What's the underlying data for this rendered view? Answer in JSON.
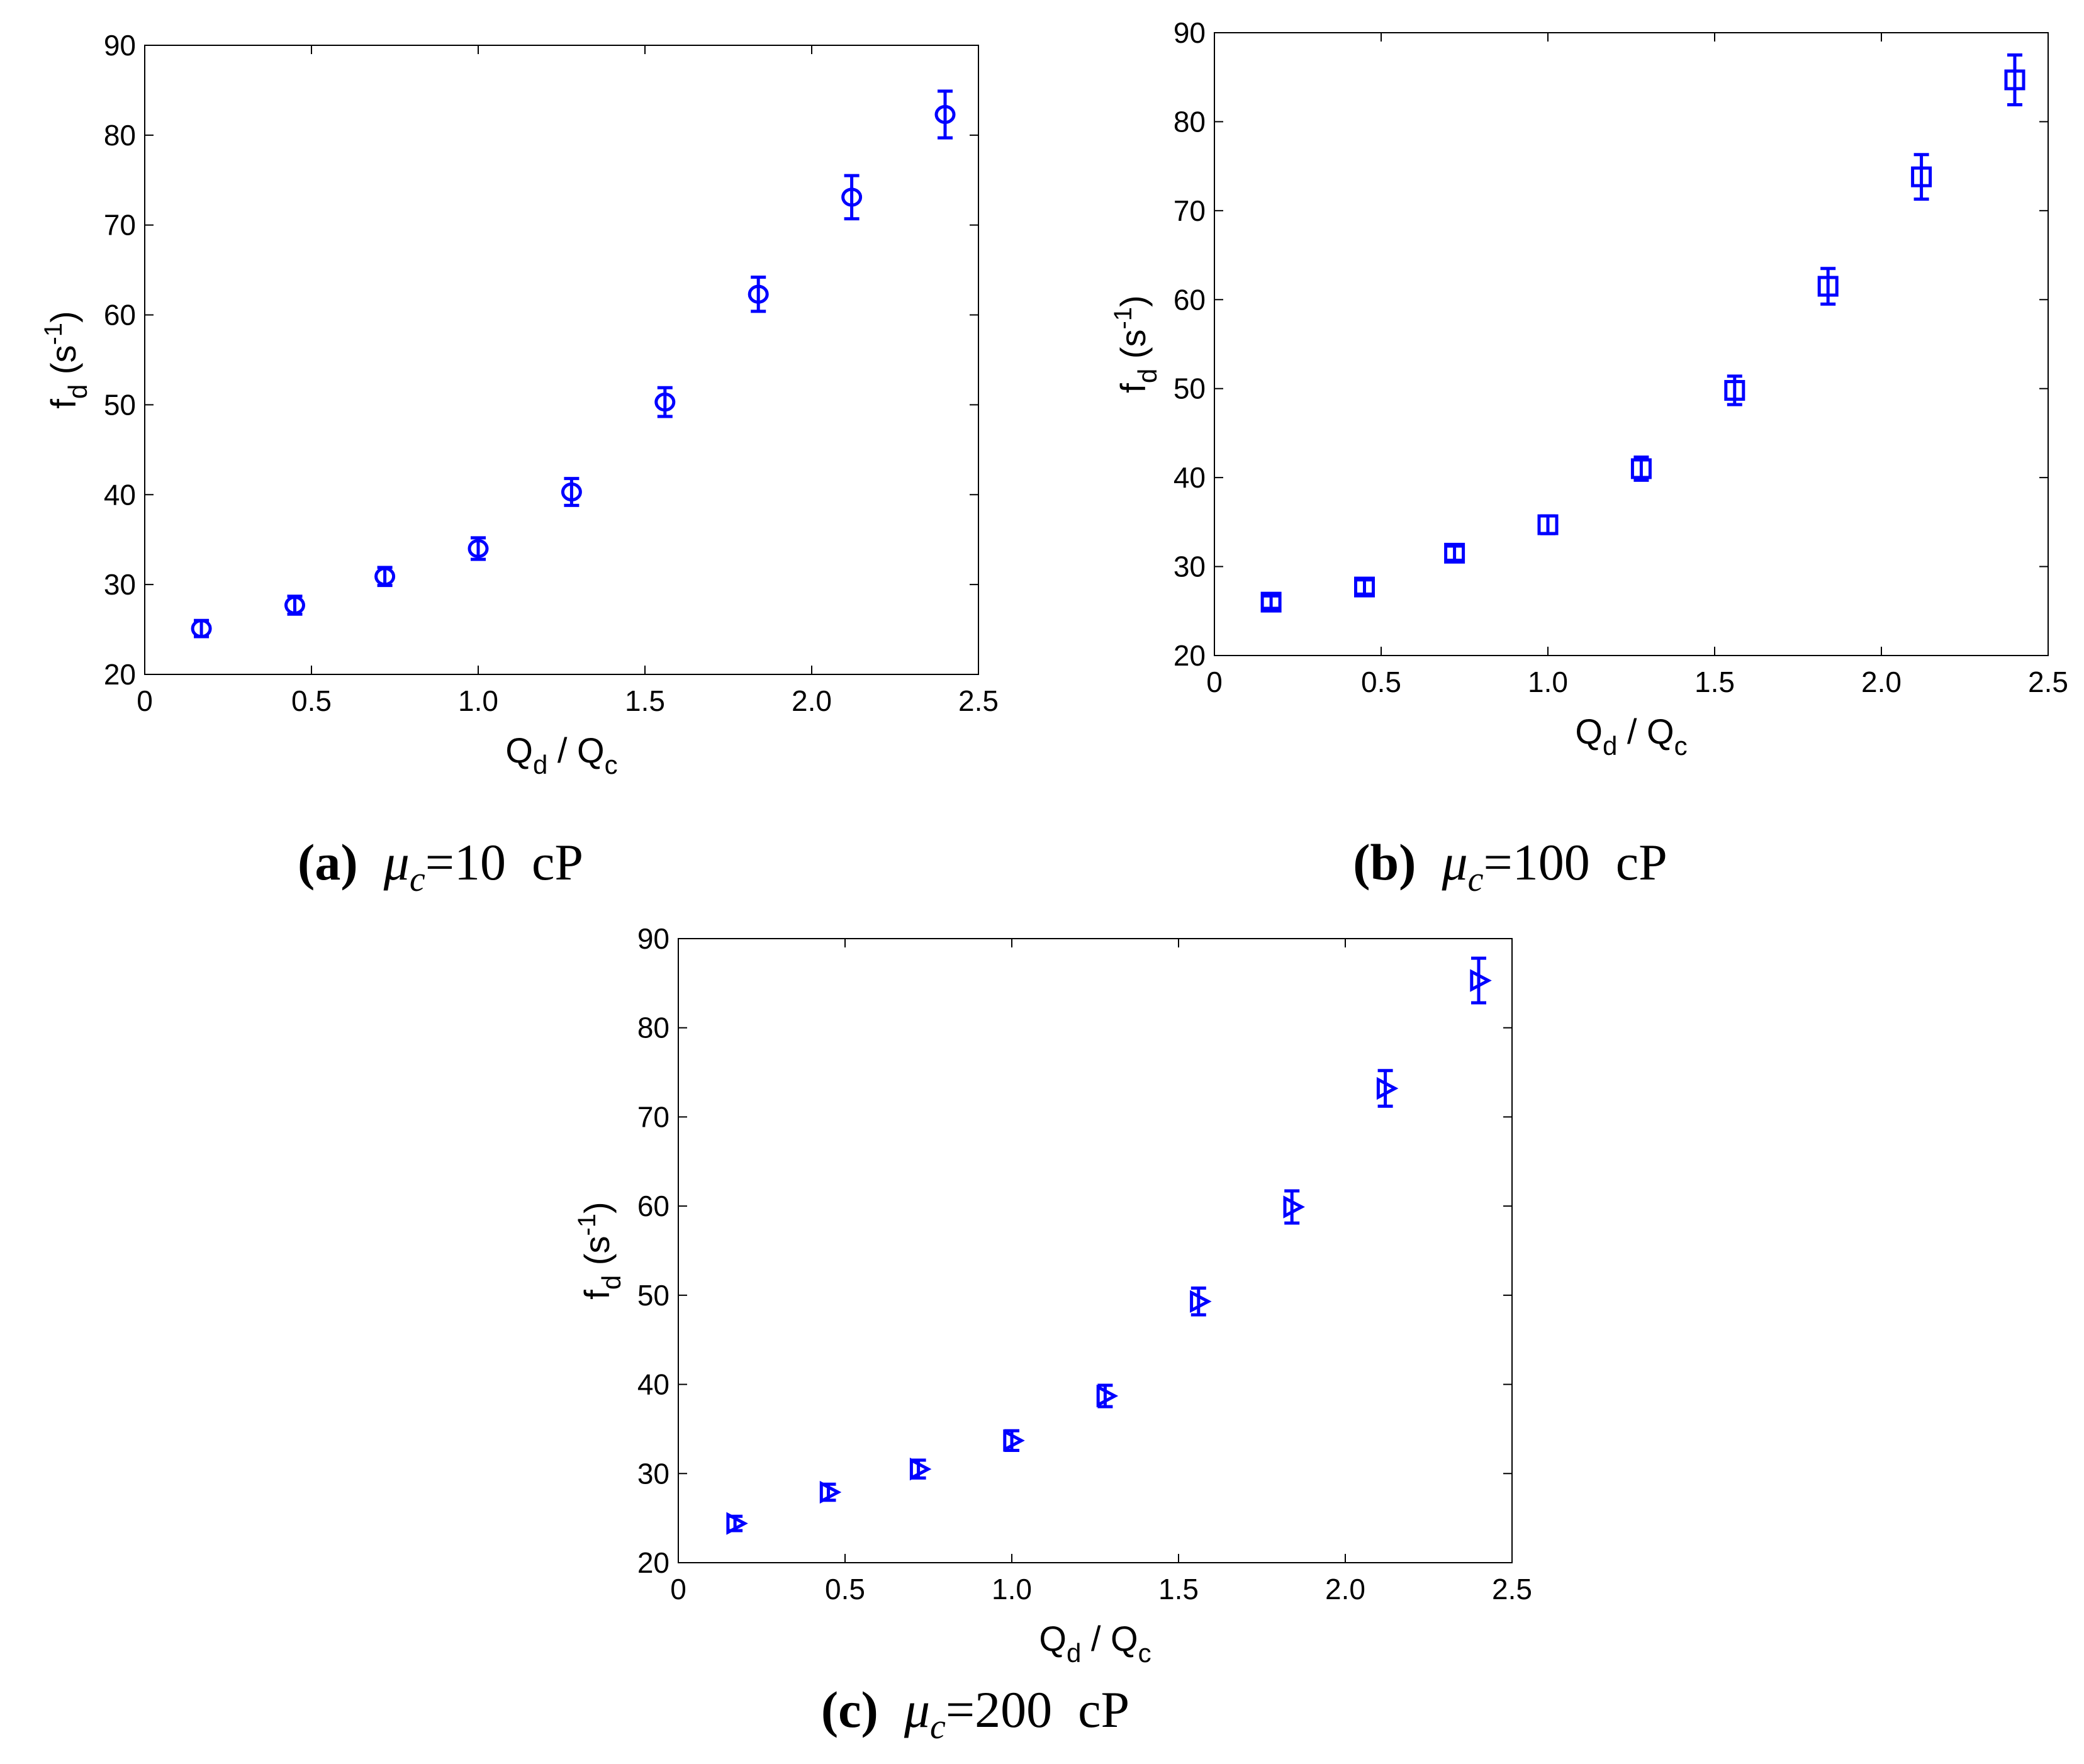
{
  "chart_data": [
    {
      "type": "scatter",
      "panel": "a",
      "marker": "circle",
      "caption": {
        "letter": "(a)",
        "symbol": "μ",
        "subscript": "c",
        "value": "=10",
        "unit": "cP"
      },
      "xlabel": {
        "main": "Q",
        "sub": "d",
        "mid": " / Q",
        "sub2": "c"
      },
      "ylabel": {
        "main": "f",
        "sub": "d",
        "mid": " (s",
        "sup": "-1",
        "end": ")"
      },
      "xlim": [
        0,
        2.5
      ],
      "ylim": [
        20,
        90
      ],
      "xticks": [
        "0",
        "0.5",
        "1.0",
        "1.5",
        "2.0",
        "2.5"
      ],
      "yticks": [
        "20",
        "30",
        "40",
        "50",
        "60",
        "70",
        "80",
        "90"
      ],
      "x": [
        0.17,
        0.45,
        0.72,
        1.0,
        1.28,
        1.56,
        1.84,
        2.12,
        2.4
      ],
      "y": [
        25.1,
        27.7,
        30.9,
        34.0,
        40.3,
        50.3,
        62.3,
        73.1,
        82.3
      ],
      "err": [
        0.9,
        1.0,
        1.0,
        1.2,
        1.5,
        1.6,
        1.9,
        2.4,
        2.6
      ],
      "color": "#0000ff"
    },
    {
      "type": "scatter",
      "panel": "b",
      "marker": "square",
      "caption": {
        "letter": "(b)",
        "symbol": "μ",
        "subscript": "c",
        "value": "=100",
        "unit": "cP"
      },
      "xlabel": {
        "main": "Q",
        "sub": "d",
        "mid": " / Q",
        "sub2": "c"
      },
      "ylabel": {
        "main": "f",
        "sub": "d",
        "mid": " (s",
        "sup": "-1",
        "end": ")"
      },
      "xlim": [
        0,
        2.5
      ],
      "ylim": [
        20,
        90
      ],
      "xticks": [
        "0",
        "0.5",
        "1.0",
        "1.5",
        "2.0",
        "2.5"
      ],
      "yticks": [
        "20",
        "30",
        "40",
        "50",
        "60",
        "70",
        "80",
        "90"
      ],
      "x": [
        0.17,
        0.45,
        0.72,
        1.0,
        1.28,
        1.56,
        1.84,
        2.12,
        2.4
      ],
      "y": [
        26.0,
        27.7,
        31.5,
        34.7,
        41.0,
        49.8,
        61.5,
        73.8,
        84.7
      ],
      "err": [
        0.7,
        0.8,
        0.8,
        1.0,
        1.3,
        1.6,
        2.0,
        2.5,
        2.8
      ],
      "color": "#0000ff"
    },
    {
      "type": "scatter",
      "panel": "c",
      "marker": "triangle-right",
      "caption": {
        "letter": "(c)",
        "symbol": "μ",
        "subscript": "c",
        "value": "=200",
        "unit": "cP"
      },
      "xlabel": {
        "main": "Q",
        "sub": "d",
        "mid": " / Q",
        "sub2": "c"
      },
      "ylabel": {
        "main": "f",
        "sub": "d",
        "mid": " (s",
        "sup": "-1",
        "end": ")"
      },
      "xlim": [
        0,
        2.5
      ],
      "ylim": [
        20,
        90
      ],
      "xticks": [
        "0",
        "0.5",
        "1.0",
        "1.5",
        "2.0",
        "2.5"
      ],
      "yticks": [
        "20",
        "30",
        "40",
        "50",
        "60",
        "70",
        "80",
        "90"
      ],
      "x": [
        0.17,
        0.45,
        0.72,
        1.0,
        1.28,
        1.56,
        1.84,
        2.12,
        2.4
      ],
      "y": [
        24.4,
        27.9,
        30.5,
        33.7,
        38.7,
        49.3,
        59.9,
        73.2,
        85.3
      ],
      "err": [
        0.8,
        0.9,
        1.0,
        1.1,
        1.2,
        1.5,
        1.8,
        2.0,
        2.5
      ],
      "color": "#0000ff"
    }
  ]
}
